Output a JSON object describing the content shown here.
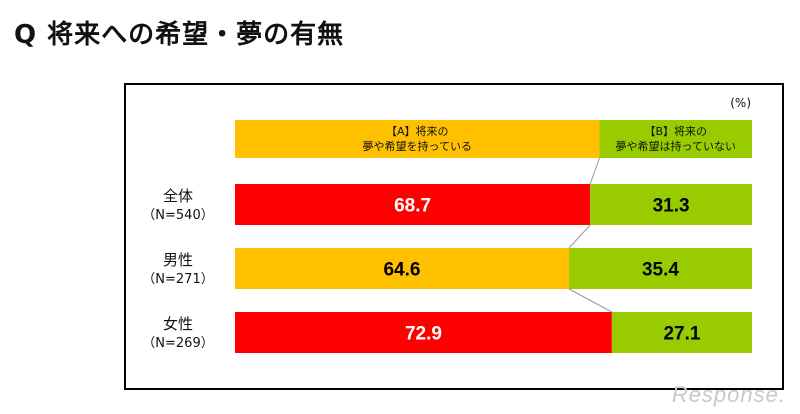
{
  "title": "Q 将来への希望・夢の有無",
  "watermark": "Response.",
  "colors": {
    "series_a_legend": "#ffc000",
    "series_b": "#99cc00",
    "highlight_red": "#ff0000",
    "dark_text": "#000000",
    "light_text": "#ffffff"
  },
  "chart_data": {
    "type": "bar",
    "orientation": "horizontal",
    "stacked": true,
    "unit": "(%)",
    "categories": [
      {
        "name": "全体",
        "n": "（N=540）"
      },
      {
        "name": "男性",
        "n": "（N=271）"
      },
      {
        "name": "女性",
        "n": "（N=269）"
      }
    ],
    "series": [
      {
        "name": "【A】将来の夢や希望を持っている",
        "legend_lines": [
          "【A】将来の",
          "夢や希望を持っている"
        ],
        "values": [
          68.7,
          64.6,
          72.9
        ],
        "bar_colors": [
          "#ff0000",
          "#ffc000",
          "#ff0000"
        ]
      },
      {
        "name": "【B】将来の夢や希望は持っていない",
        "legend_lines": [
          "【B】将来の",
          "夢や希望は持っていない"
        ],
        "values": [
          31.3,
          35.4,
          27.1
        ],
        "bar_colors": [
          "#99cc00",
          "#99cc00",
          "#99cc00"
        ]
      }
    ],
    "value_labels": [
      [
        "68.7",
        "64.6",
        "72.9"
      ],
      [
        "31.3",
        "35.4",
        "27.1"
      ]
    ],
    "xlim": [
      0,
      100
    ],
    "grid": false,
    "legend_position": "top"
  }
}
